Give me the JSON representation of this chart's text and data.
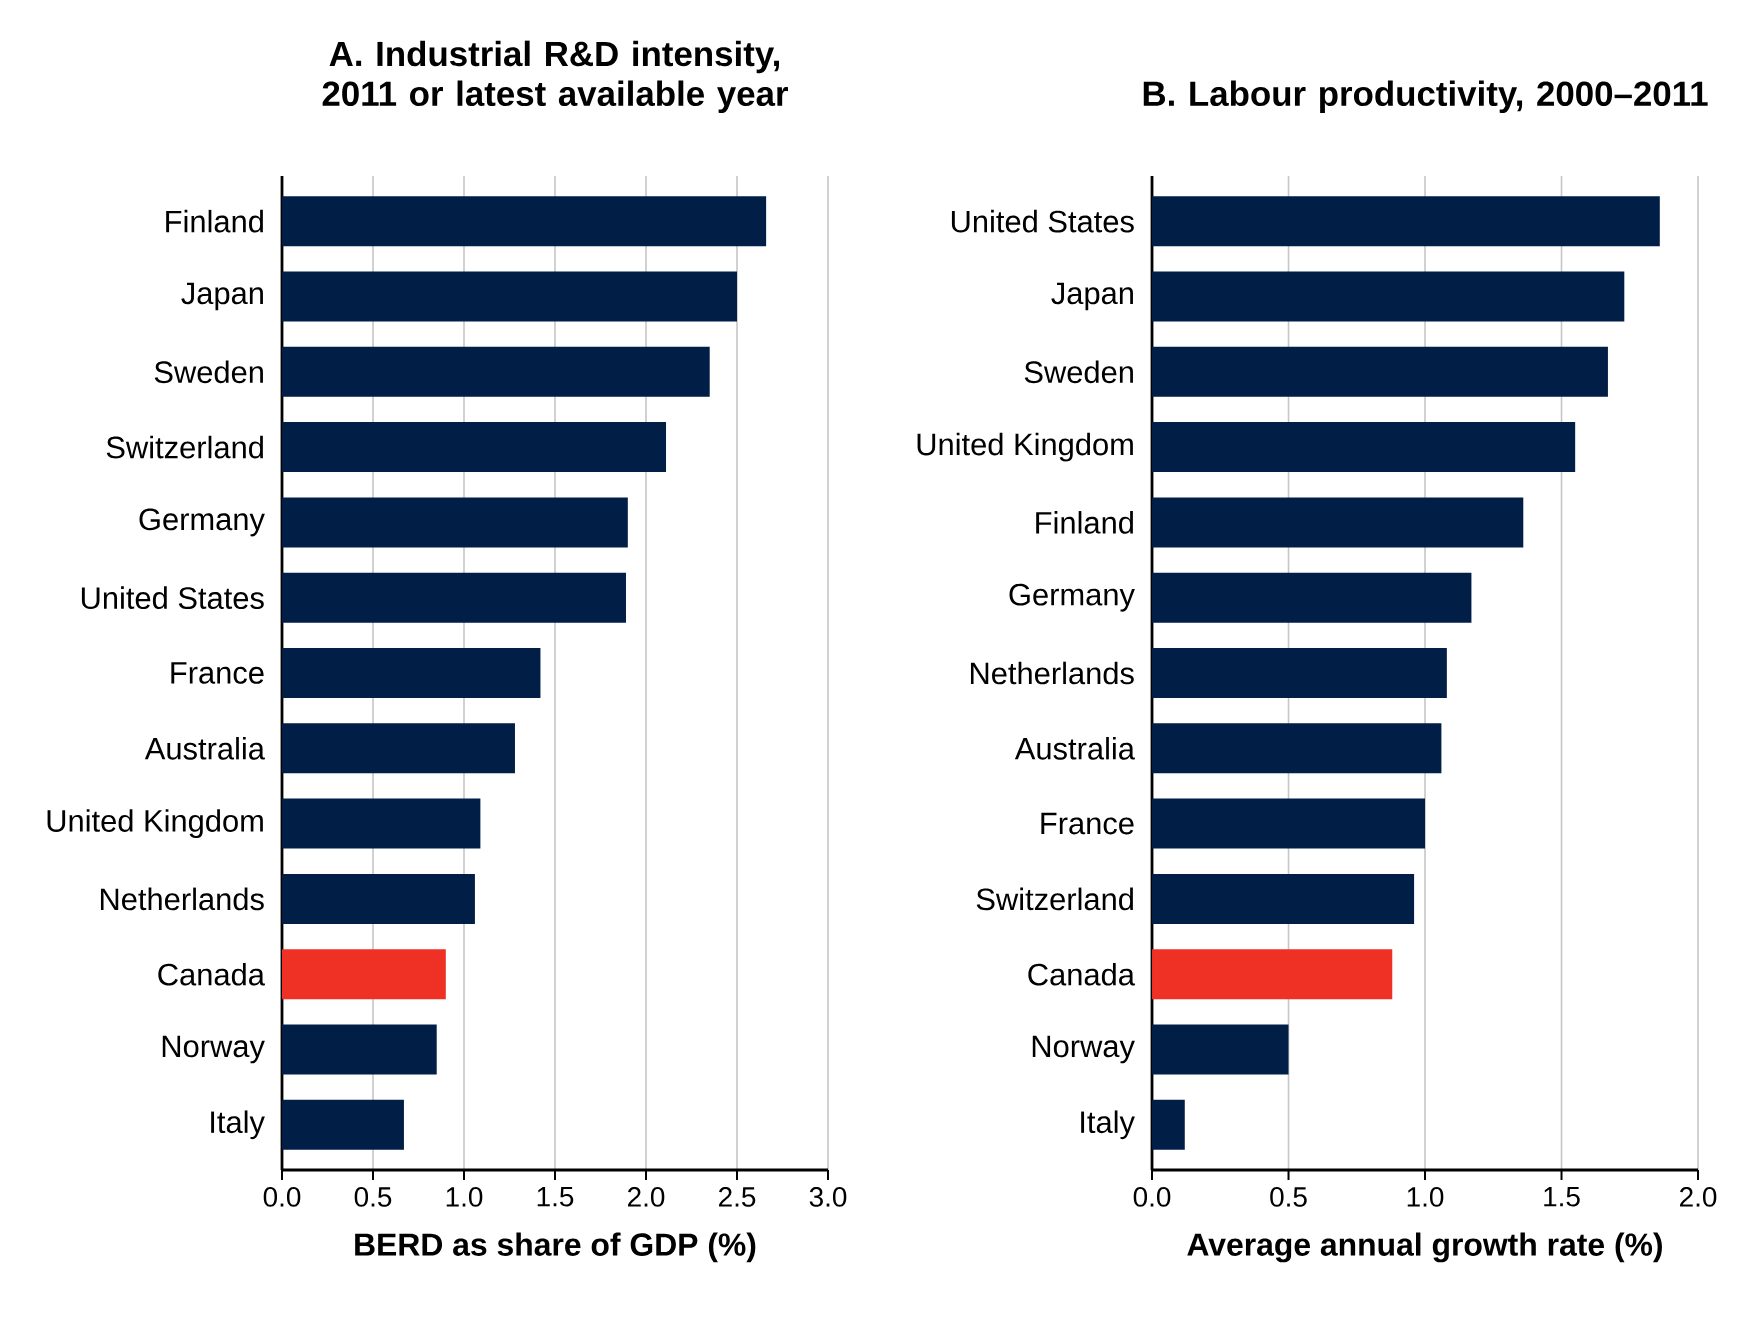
{
  "chart_data": [
    {
      "type": "bar",
      "orientation": "horizontal",
      "title": "A. Industrial R&D intensity, 2011 or latest available year",
      "xlabel": "BERD as share of GDP (%)",
      "categories": [
        "Finland",
        "Japan",
        "Sweden",
        "Switzerland",
        "Germany",
        "United States",
        "France",
        "Australia",
        "United Kingdom",
        "Netherlands",
        "Canada",
        "Norway",
        "Italy"
      ],
      "values": [
        2.66,
        2.5,
        2.35,
        2.11,
        1.9,
        1.89,
        1.42,
        1.28,
        1.09,
        1.06,
        0.9,
        0.85,
        0.67
      ],
      "colors": [
        "#001e46",
        "#001e46",
        "#001e46",
        "#001e46",
        "#001e46",
        "#001e46",
        "#001e46",
        "#001e46",
        "#001e46",
        "#001e46",
        "#ee3124",
        "#001e46",
        "#001e46"
      ],
      "xlim": [
        0,
        3
      ],
      "xticks": [
        {
          "value": 0,
          "label": "0.0"
        },
        {
          "value": 0.5,
          "label": "0.5"
        },
        {
          "value": 1,
          "label": "1.0"
        },
        {
          "value": 1.5,
          "label": "1.5"
        },
        {
          "value": 2,
          "label": "2.0"
        },
        {
          "value": 2.5,
          "label": "2.5"
        },
        {
          "value": 3,
          "label": "3.0"
        }
      ],
      "grid": "x"
    },
    {
      "type": "bar",
      "orientation": "horizontal",
      "title": "B. Labour productivity, 2000–2011",
      "xlabel": "Average annual growth rate (%)",
      "categories": [
        "United States",
        "Japan",
        "Sweden",
        "United Kingdom",
        "Finland",
        "Germany",
        "Netherlands",
        "Australia",
        "France",
        "Switzerland",
        "Canada",
        "Norway",
        "Italy"
      ],
      "values": [
        1.86,
        1.73,
        1.67,
        1.55,
        1.36,
        1.17,
        1.08,
        1.06,
        1.0,
        0.96,
        0.88,
        0.5,
        0.12
      ],
      "colors": [
        "#001e46",
        "#001e46",
        "#001e46",
        "#001e46",
        "#001e46",
        "#001e46",
        "#001e46",
        "#001e46",
        "#001e46",
        "#001e46",
        "#ee3124",
        "#001e46",
        "#001e46"
      ],
      "xlim": [
        0,
        2
      ],
      "xticks": [
        {
          "value": 0,
          "label": "0.0"
        },
        {
          "value": 0.5,
          "label": "0.5"
        },
        {
          "value": 1,
          "label": "1.0"
        },
        {
          "value": 1.5,
          "label": "1.5"
        },
        {
          "value": 2,
          "label": "2.0"
        }
      ],
      "grid": "x"
    }
  ]
}
